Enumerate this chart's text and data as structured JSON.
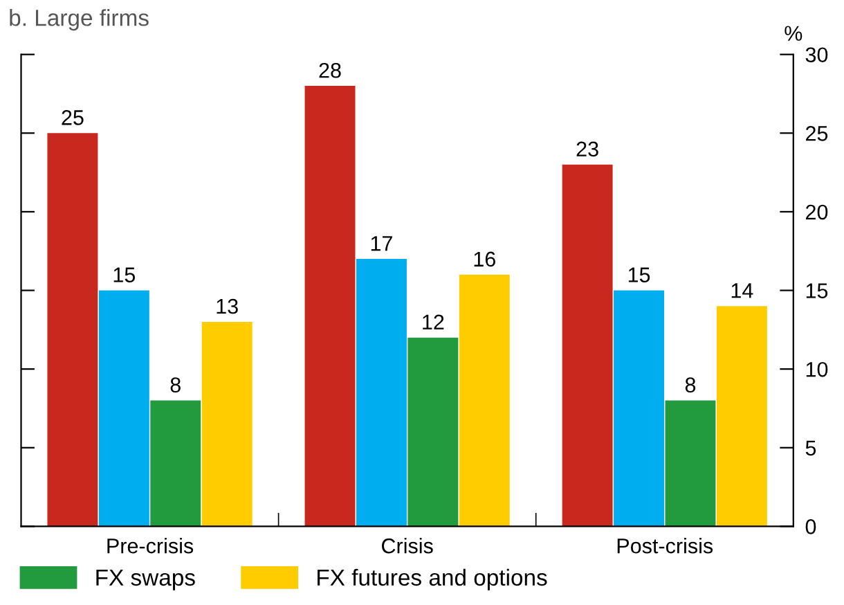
{
  "chart_data": {
    "type": "bar",
    "title": "b. Large firms",
    "ylabel": "%",
    "categories": [
      "Pre-crisis",
      "Crisis",
      "Post-crisis"
    ],
    "series": [
      {
        "color": "#c8281e",
        "values": [
          25,
          28,
          23
        ]
      },
      {
        "color": "#00aeef",
        "values": [
          15,
          17,
          15
        ]
      },
      {
        "name": "FX swaps",
        "color": "#229a3e",
        "values": [
          8,
          12,
          8
        ]
      },
      {
        "name": "FX futures and options",
        "color": "#ffcc00",
        "values": [
          13,
          16,
          14
        ]
      }
    ],
    "ylim": [
      0,
      30
    ],
    "yticks": [
      0,
      5,
      10,
      15,
      20,
      25,
      30
    ],
    "data_labels": true,
    "grid": false,
    "legend": "bottom"
  }
}
